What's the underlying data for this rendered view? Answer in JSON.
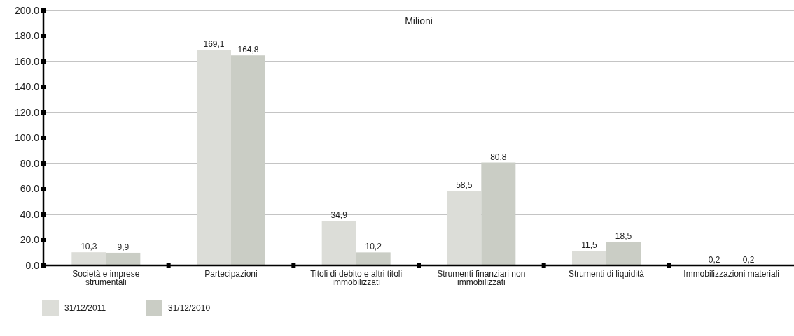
{
  "chart_data": {
    "type": "bar",
    "title": "Milioni",
    "categories": [
      "Società e imprese strumentali",
      "Partecipazioni",
      "Titoli di debito e altri titoli immobilizzati",
      "Strumenti finanziari non immobilizzati",
      "Strumenti di liquidità",
      "Immobilizzazioni materiali"
    ],
    "series": [
      {
        "name": "31/12/2011",
        "color": "#dcddd8",
        "values": [
          10.3,
          169.1,
          34.9,
          58.5,
          11.5,
          0.2
        ],
        "value_labels": [
          "10,3",
          "169,1",
          "34,9",
          "58,5",
          "11,5",
          "0,2"
        ]
      },
      {
        "name": "31/12/2010",
        "color": "#cacdc5",
        "values": [
          9.9,
          164.8,
          10.2,
          80.8,
          18.5,
          0.2
        ],
        "value_labels": [
          "9,9",
          "164,8",
          "10,2",
          "80,8",
          "18,5",
          "0,2"
        ]
      }
    ],
    "ylim": [
      0,
      200
    ],
    "yticks": [
      {
        "value": 0,
        "label": "0.0"
      },
      {
        "value": 20,
        "label": "20.0"
      },
      {
        "value": 40,
        "label": "40.0"
      },
      {
        "value": 60,
        "label": "60.0"
      },
      {
        "value": 80,
        "label": "80.0"
      },
      {
        "value": 100,
        "label": "100.0"
      },
      {
        "value": 120,
        "label": "120.0"
      },
      {
        "value": 140,
        "label": "140.0"
      },
      {
        "value": 160,
        "label": "160.0"
      },
      {
        "value": 180,
        "label": "180.0"
      },
      {
        "value": 200,
        "label": "200.0"
      }
    ],
    "grid": "y",
    "legend": "bottom left"
  }
}
